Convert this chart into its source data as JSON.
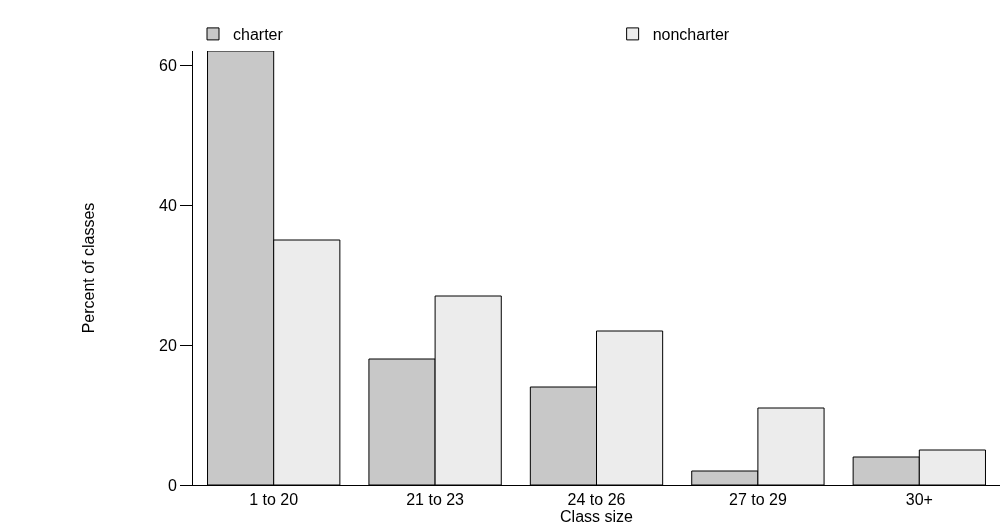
{
  "chart_data": {
    "type": "bar",
    "xlabel": "Class size",
    "ylabel": "Percent of classes",
    "categories": [
      "1 to 20",
      "21 to 23",
      "24 to 26",
      "27 to 29",
      "30+"
    ],
    "series": [
      {
        "name": "charter",
        "color": "#c8c8c8",
        "values": [
          62,
          18,
          14,
          2,
          4
        ]
      },
      {
        "name": "noncharter",
        "color": "#ececec",
        "values": [
          35,
          27,
          22,
          11,
          5
        ]
      }
    ],
    "ylim": [
      0,
      62
    ],
    "yticks": [
      0,
      20,
      40,
      60
    ],
    "legend": "top"
  }
}
